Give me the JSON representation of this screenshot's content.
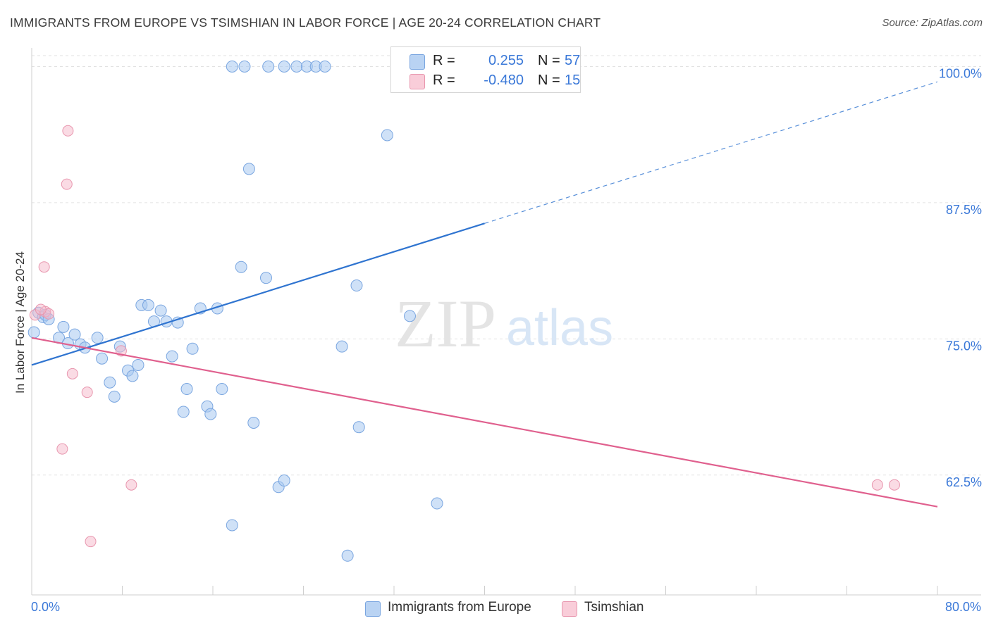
{
  "title": "IMMIGRANTS FROM EUROPE VS TSIMSHIAN IN LABOR FORCE | AGE 20-24 CORRELATION CHART",
  "source": "Source: ZipAtlas.com",
  "watermark": {
    "zip": "ZIP",
    "atlas": "atlas"
  },
  "colors": {
    "blue_fill": "#a8c8f0",
    "blue_stroke": "#7aa6e0",
    "blue_line": "#2f74d0",
    "pink_fill": "#f5b8c9",
    "pink_stroke": "#e896ae",
    "pink_line": "#e0608e",
    "tick_text": "#3a78d8",
    "grid": "#e2e2e2"
  },
  "legend": {
    "rows": [
      {
        "r_label": "R =",
        "r_value": "0.255",
        "n_label": "N =",
        "n_value": "57",
        "color": "#a8c8f0"
      },
      {
        "r_label": "R =",
        "r_value": "-0.480",
        "n_label": "N =",
        "n_value": "15",
        "color": "#f5b8c9"
      }
    ]
  },
  "bottom_legend": [
    {
      "label": "Immigrants from Europe",
      "color": "#a8c8f0"
    },
    {
      "label": "Tsimshian",
      "color": "#f5b8c9"
    }
  ],
  "chart_data": {
    "type": "scatter",
    "title": "IMMIGRANTS FROM EUROPE VS TSIMSHIAN IN LABOR FORCE | AGE 20-24 CORRELATION CHART",
    "xlabel": "",
    "ylabel": "In Labor Force | Age 20-24",
    "xlim": [
      0,
      80
    ],
    "ylim": [
      51.5,
      101
    ],
    "x_tick_labels": [
      "0.0%",
      "80.0%"
    ],
    "y_ticks": [
      62.5,
      75.0,
      87.5,
      100.0
    ],
    "y_tick_labels": [
      "62.5%",
      "75.0%",
      "87.5%",
      "100.0%"
    ],
    "grid": true,
    "legend_position": "top-center",
    "series": [
      {
        "name": "Immigrants from Europe",
        "color": "#a8c8f0",
        "points": [
          [
            0.2,
            75.6
          ],
          [
            0.6,
            77.4
          ],
          [
            1.0,
            77.0
          ],
          [
            1.2,
            77.2
          ],
          [
            1.5,
            76.8
          ],
          [
            2.8,
            76.1
          ],
          [
            2.4,
            75.1
          ],
          [
            3.2,
            74.6
          ],
          [
            3.8,
            75.4
          ],
          [
            4.3,
            74.5
          ],
          [
            4.7,
            74.2
          ],
          [
            5.8,
            75.1
          ],
          [
            6.2,
            73.2
          ],
          [
            6.9,
            71.0
          ],
          [
            7.3,
            69.7
          ],
          [
            7.8,
            74.3
          ],
          [
            8.5,
            72.1
          ],
          [
            8.9,
            71.6
          ],
          [
            9.4,
            72.6
          ],
          [
            9.7,
            78.1
          ],
          [
            10.3,
            78.1
          ],
          [
            10.8,
            76.6
          ],
          [
            11.4,
            77.6
          ],
          [
            11.9,
            76.6
          ],
          [
            12.4,
            73.4
          ],
          [
            12.9,
            76.5
          ],
          [
            13.4,
            68.3
          ],
          [
            13.7,
            70.4
          ],
          [
            14.2,
            74.1
          ],
          [
            14.9,
            77.8
          ],
          [
            15.5,
            68.8
          ],
          [
            15.8,
            68.1
          ],
          [
            16.4,
            77.8
          ],
          [
            16.8,
            70.4
          ],
          [
            17.7,
            57.9
          ],
          [
            18.5,
            81.6
          ],
          [
            19.6,
            67.3
          ],
          [
            19.2,
            90.6
          ],
          [
            20.7,
            80.6
          ],
          [
            21.8,
            61.4
          ],
          [
            22.3,
            62.0
          ],
          [
            27.4,
            74.3
          ],
          [
            27.9,
            55.1
          ],
          [
            28.7,
            79.9
          ],
          [
            28.9,
            66.9
          ],
          [
            31.4,
            93.7
          ],
          [
            33.4,
            77.1
          ],
          [
            35.8,
            59.9
          ],
          [
            17.7,
            100.0
          ],
          [
            18.8,
            100.0
          ],
          [
            20.9,
            100.0
          ],
          [
            22.3,
            100.0
          ],
          [
            23.4,
            100.0
          ],
          [
            24.3,
            100.0
          ],
          [
            25.1,
            100.0
          ],
          [
            25.9,
            100.0
          ],
          [
            34.5,
            100.0
          ]
        ],
        "trend": {
          "x": [
            0,
            40
          ],
          "y": [
            72.6,
            85.6
          ],
          "extended_to": [
            80,
            98.6
          ]
        }
      },
      {
        "name": "Tsimshian",
        "color": "#f5b8c9",
        "points": [
          [
            1.2,
            77.5
          ],
          [
            1.5,
            77.3
          ],
          [
            3.2,
            94.1
          ],
          [
            3.1,
            89.2
          ],
          [
            1.1,
            81.6
          ],
          [
            3.6,
            71.8
          ],
          [
            4.9,
            70.1
          ],
          [
            2.7,
            64.9
          ],
          [
            8.8,
            61.6
          ],
          [
            5.2,
            56.4
          ],
          [
            7.9,
            73.9
          ],
          [
            74.7,
            61.6
          ],
          [
            76.2,
            61.6
          ],
          [
            0.3,
            77.2
          ],
          [
            0.8,
            77.7
          ]
        ],
        "trend": {
          "x": [
            0,
            80
          ],
          "y": [
            75.1,
            59.6
          ]
        }
      }
    ]
  }
}
